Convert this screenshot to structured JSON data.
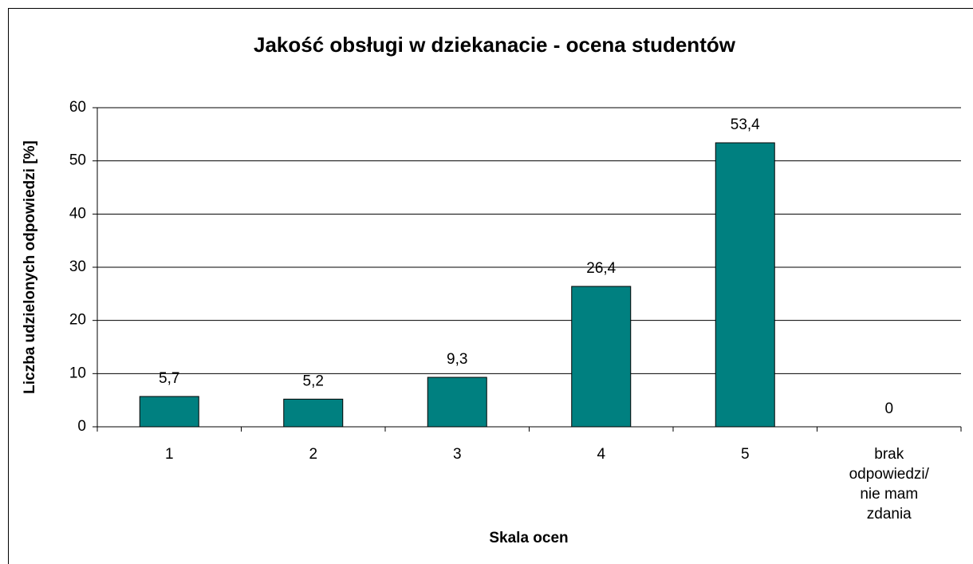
{
  "chart_data": {
    "type": "bar",
    "title": "Jakość obsługi w dziekanacie - ocena studentów",
    "x_label": "Skala ocen",
    "y_label": "Liczba udzielonych odpowiedzi [%]",
    "categories": [
      "1",
      "2",
      "3",
      "4",
      "5",
      "brak odpowiedzi/ nie mam zdania"
    ],
    "values": [
      5.7,
      5.2,
      9.3,
      26.4,
      53.4,
      0
    ],
    "value_labels": [
      "5,7",
      "5,2",
      "9,3",
      "26,4",
      "53,4",
      "0"
    ],
    "color": "#008080",
    "ylim": [
      0,
      60
    ],
    "yticks": [
      0,
      10,
      20,
      30,
      40,
      50,
      60
    ],
    "grid": true
  }
}
